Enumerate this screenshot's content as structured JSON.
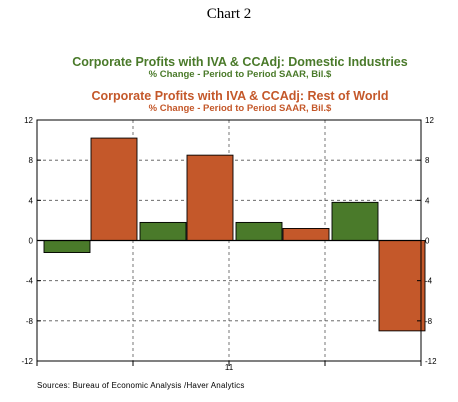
{
  "header": {
    "title": "Chart 2"
  },
  "chart_data": {
    "type": "bar",
    "series": [
      {
        "name": "Corporate Profits with IVA & CCAdj: Domestic Industries",
        "subtitle": "% Change - Period to Period     SAAR, Bil.$",
        "color": "#4a7a2a",
        "values": [
          -1.2,
          1.8,
          1.8,
          3.8
        ]
      },
      {
        "name": "Corporate Profits with IVA & CCAdj: Rest of World",
        "subtitle": "% Change - Period to Period     SAAR, Bil.$",
        "color": "#c4582a",
        "values": [
          10.2,
          8.5,
          1.2,
          -9.0
        ]
      }
    ],
    "categories": [
      "",
      "",
      "",
      ""
    ],
    "x_tick_labels": [
      "11"
    ],
    "ylim": [
      -12,
      12
    ],
    "y_ticks": [
      -12,
      -8,
      -4,
      0,
      4,
      8,
      12
    ],
    "grid": true,
    "source": "Sources:  Bureau of Economic Analysis /Haver Analytics"
  }
}
